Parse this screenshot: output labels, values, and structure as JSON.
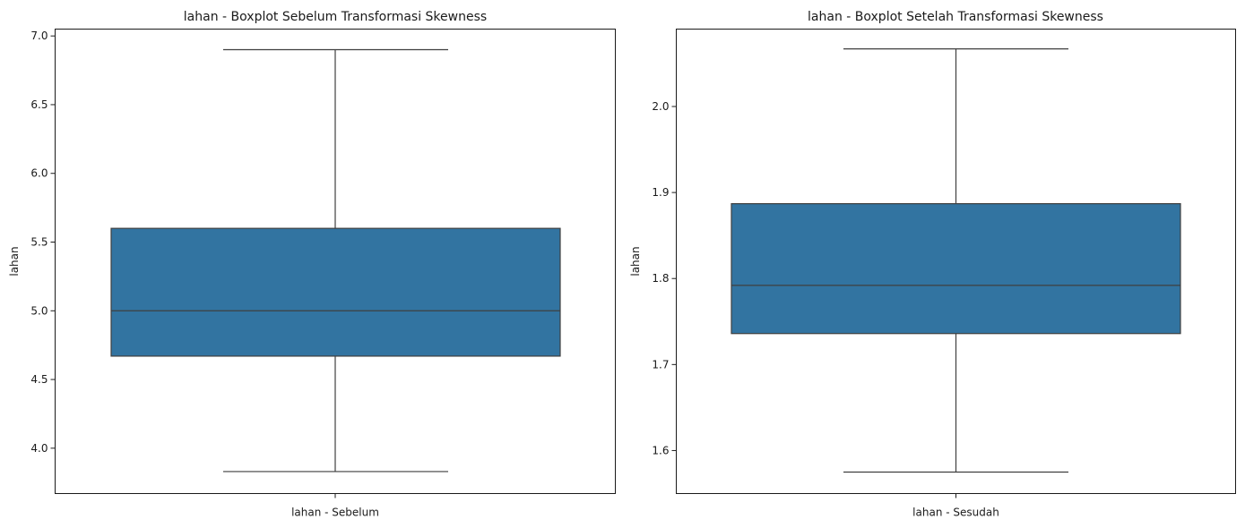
{
  "chart_data": [
    {
      "type": "box",
      "title": "lahan - Boxplot Sebelum Transformasi Skewness",
      "xlabel": "",
      "ylabel": "lahan",
      "categories": [
        "lahan - Sebelum"
      ],
      "ylim": [
        3.67,
        7.05
      ],
      "yticks": [
        4.0,
        4.5,
        5.0,
        5.5,
        6.0,
        6.5,
        7.0
      ],
      "ytick_labels": [
        "4.0",
        "4.5",
        "5.0",
        "5.5",
        "6.0",
        "6.5",
        "7.0"
      ],
      "box": {
        "whislo": 3.83,
        "q1": 4.67,
        "med": 5.0,
        "q3": 5.6,
        "whishi": 6.9
      },
      "grid": false,
      "color": "#3274a1"
    },
    {
      "type": "box",
      "title": "lahan - Boxplot Setelah Transformasi Skewness",
      "xlabel": "",
      "ylabel": "lahan",
      "categories": [
        "lahan - Sesudah"
      ],
      "ylim": [
        1.55,
        2.09
      ],
      "yticks": [
        1.6,
        1.7,
        1.8,
        1.9,
        2.0
      ],
      "ytick_labels": [
        "1.6",
        "1.7",
        "1.8",
        "1.9",
        "2.0"
      ],
      "box": {
        "whislo": 1.575,
        "q1": 1.736,
        "med": 1.792,
        "q3": 1.887,
        "whishi": 2.067
      },
      "grid": false,
      "color": "#3274a1"
    }
  ]
}
